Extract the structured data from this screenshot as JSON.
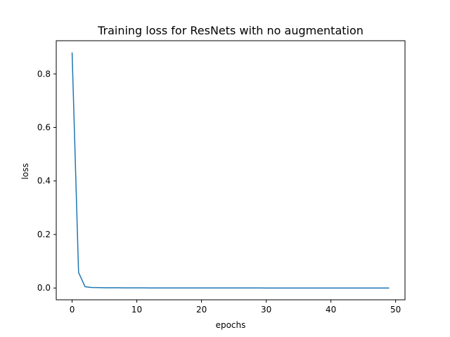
{
  "chart_data": {
    "type": "line",
    "title": "Training loss for ResNets with no augmentation",
    "xlabel": "epochs",
    "ylabel": "loss",
    "xlim": [
      -2.45,
      51.45
    ],
    "ylim": [
      -0.044,
      0.924
    ],
    "xticks": [
      0,
      10,
      20,
      30,
      40,
      50
    ],
    "yticks": [
      0.0,
      0.2,
      0.4,
      0.6,
      0.8
    ],
    "ytick_labels": [
      "0.0",
      "0.2",
      "0.4",
      "0.6",
      "0.8"
    ],
    "grid": false,
    "line_color": "#1f77b4",
    "series": [
      {
        "x": [
          0,
          1,
          2,
          3,
          4,
          5,
          6,
          7,
          8,
          9,
          10,
          11,
          12,
          13,
          14,
          15,
          16,
          17,
          18,
          19,
          20,
          21,
          22,
          23,
          24,
          25,
          26,
          27,
          28,
          29,
          30,
          31,
          32,
          33,
          34,
          35,
          36,
          37,
          38,
          39,
          40,
          41,
          42,
          43,
          44,
          45,
          46,
          47,
          48,
          49
        ],
        "values": [
          0.88,
          0.058,
          0.005,
          0.002,
          0.0015,
          0.001,
          0.001,
          0.0008,
          0.0007,
          0.0006,
          0.0005,
          0.0005,
          0.0004,
          0.0004,
          0.0004,
          0.0003,
          0.0003,
          0.0003,
          0.0003,
          0.0003,
          0.0002,
          0.0002,
          0.0002,
          0.0002,
          0.0002,
          0.0002,
          0.0002,
          0.0002,
          0.0002,
          0.0002,
          0.0001,
          0.0001,
          0.0001,
          0.0001,
          0.0001,
          0.0001,
          0.0001,
          0.0001,
          0.0001,
          0.0001,
          0.0001,
          0.0001,
          0.0001,
          0.0001,
          0.0001,
          0.0001,
          0.0001,
          0.0001,
          0.0001,
          0.0001
        ]
      }
    ]
  }
}
